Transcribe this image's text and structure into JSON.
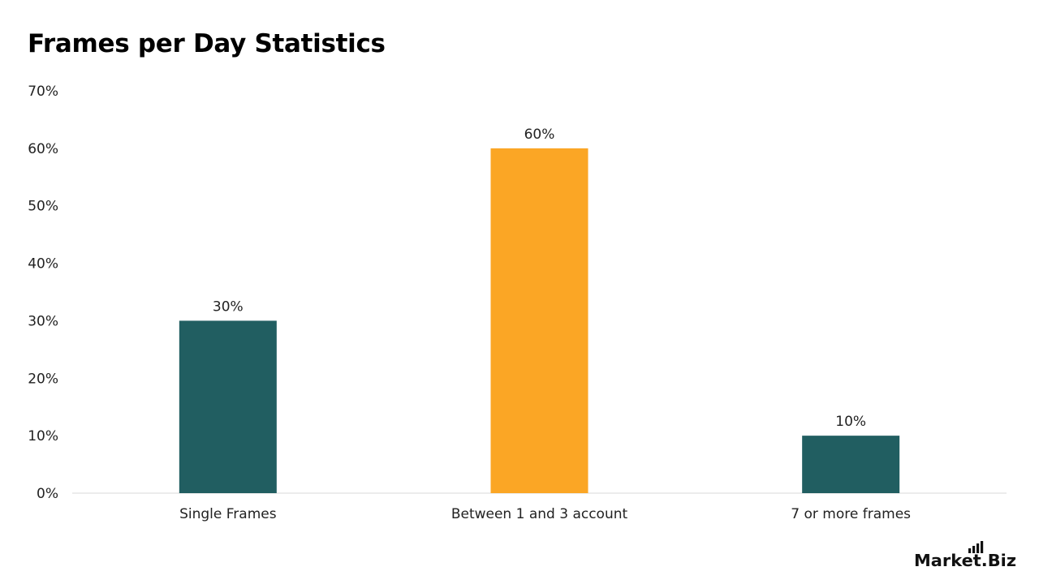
{
  "chart_data": {
    "type": "bar",
    "title": "Frames per Day Statistics",
    "categories": [
      "Single Frames",
      "Between 1 and 3 account",
      "7 or more frames"
    ],
    "values": [
      30,
      60,
      10
    ],
    "value_labels": [
      "30%",
      "60%",
      "10%"
    ],
    "bar_colors": [
      "#215e61",
      "#fba625",
      "#215e61"
    ],
    "ylim": [
      0,
      70
    ],
    "yticks": [
      0,
      10,
      20,
      30,
      40,
      50,
      60,
      70
    ],
    "ytick_labels": [
      "0%",
      "10%",
      "20%",
      "30%",
      "40%",
      "50%",
      "60%",
      "70%"
    ],
    "grid": false,
    "xlabel": "",
    "ylabel": ""
  },
  "branding": {
    "logo_text": "Market.Biz"
  }
}
